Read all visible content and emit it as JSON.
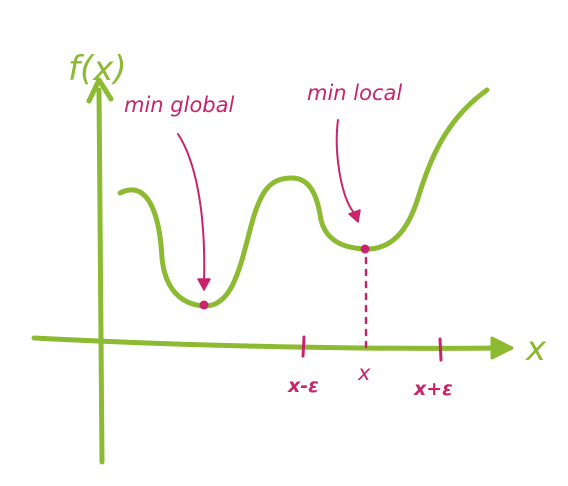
{
  "axes": {
    "y_label": "f(x)",
    "x_label": "x"
  },
  "annotations": {
    "global_min": "min global",
    "local_min": "min local"
  },
  "ticks": {
    "left": "x-ε",
    "center": "x",
    "right": "x+ε"
  },
  "colors": {
    "curve_and_axes": "#8cba32",
    "annotations": "#c8246b",
    "background": "#ffffff"
  }
}
